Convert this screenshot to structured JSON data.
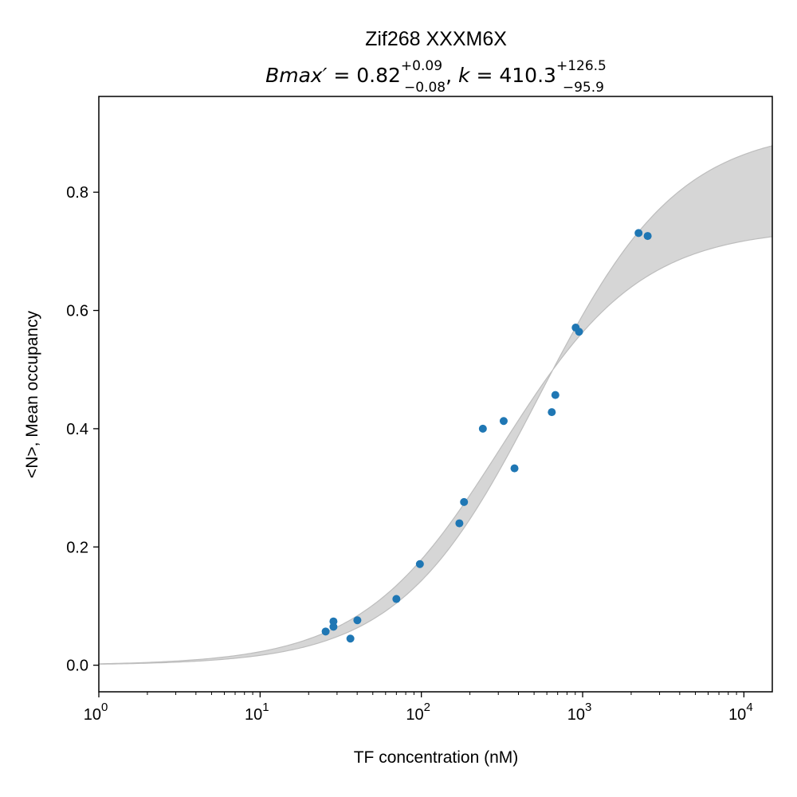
{
  "chart_data": {
    "type": "scatter",
    "title": "Zif268 XXXM6X",
    "subtitle": {
      "bmax_label": "Bmax′",
      "bmax_value": "0.82",
      "bmax_plus": "+0.09",
      "bmax_minus": "−0.08",
      "k_label": "k",
      "k_value": "410.3",
      "k_plus": "+126.5",
      "k_minus": "−95.9"
    },
    "xlabel": "TF concentration (nM)",
    "ylabel": "<N>, Mean occupancy",
    "xscale": "log",
    "xlim": [
      1,
      15000
    ],
    "ylim": [
      -0.045,
      0.962
    ],
    "x_ticks": [
      {
        "value": 1,
        "base": "10",
        "exp": "0"
      },
      {
        "value": 10,
        "base": "10",
        "exp": "1"
      },
      {
        "value": 100,
        "base": "10",
        "exp": "2"
      },
      {
        "value": 1000,
        "base": "10",
        "exp": "3"
      },
      {
        "value": 10000,
        "base": "10",
        "exp": "4"
      }
    ],
    "y_ticks": [
      {
        "value": 0.0,
        "label": "0.0"
      },
      {
        "value": 0.2,
        "label": "0.2"
      },
      {
        "value": 0.4,
        "label": "0.4"
      },
      {
        "value": 0.6,
        "label": "0.6"
      },
      {
        "value": 0.8,
        "label": "0.8"
      }
    ],
    "grid": false,
    "fit_band": {
      "model": "Bmax * x / (k + x)",
      "lower": {
        "bmax": 0.74,
        "k": 314.4
      },
      "upper": {
        "bmax": 0.91,
        "k": 536.8
      },
      "color": "#d6d6d6",
      "edge_color": "#bdbdbd"
    },
    "points": {
      "color": "#1f77b4",
      "x": [
        25.5,
        28.5,
        28.5,
        36.3,
        40.1,
        70.0,
        97.9,
        172.1,
        183.9,
        240.6,
        323.9,
        378.0,
        643.7,
        677.5,
        905.6,
        950.2,
        2222.8,
        2530.9
      ],
      "y": [
        0.057,
        0.065,
        0.074,
        0.045,
        0.076,
        0.112,
        0.171,
        0.24,
        0.276,
        0.4,
        0.413,
        0.333,
        0.428,
        0.457,
        0.571,
        0.564,
        0.731,
        0.726
      ]
    }
  }
}
